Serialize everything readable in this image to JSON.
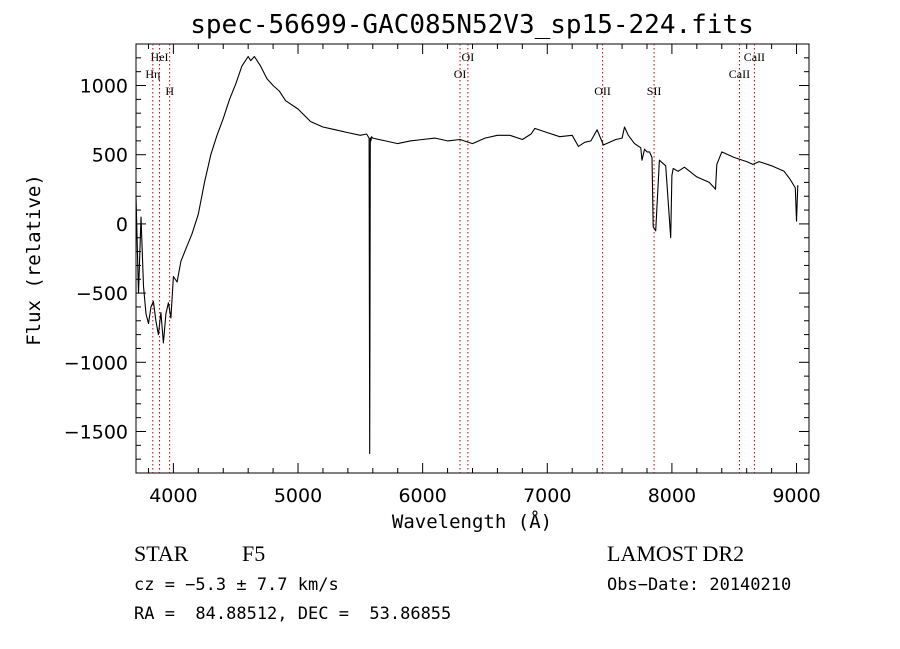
{
  "chart_data": {
    "type": "line",
    "title": "spec-56699-GAC085N52V3_sp15-224.fits",
    "xlabel": "Wavelength (Å)",
    "ylabel": "Flux (relative)",
    "xlim": [
      3700,
      9100
    ],
    "ylim": [
      -1800,
      1300
    ],
    "xticks": [
      4000,
      5000,
      6000,
      7000,
      8000,
      9000
    ],
    "xticklabels": [
      "4000",
      "5000",
      "6000",
      "7000",
      "8000",
      "9000"
    ],
    "yticks": [
      -1500,
      -1000,
      -500,
      0,
      500,
      1000
    ],
    "yticklabels": [
      "−1500",
      "−1000",
      "−500",
      "0",
      "500",
      "1000"
    ],
    "grid": false,
    "series": [
      {
        "x": [
          3700,
          3720,
          3740,
          3760,
          3780,
          3800,
          3820,
          3840,
          3860,
          3880,
          3900,
          3920,
          3940,
          3960,
          3980,
          4000,
          4030,
          4060,
          4100,
          4150,
          4200,
          4250,
          4300,
          4350,
          4400,
          4450,
          4500,
          4550,
          4600,
          4620,
          4650,
          4700,
          4750,
          4800,
          4850,
          4900,
          5000,
          5100,
          5200,
          5300,
          5400,
          5500,
          5550,
          5570,
          5575,
          5580,
          5585,
          5590,
          5600,
          5700,
          5800,
          5900,
          6000,
          6100,
          6200,
          6300,
          6400,
          6500,
          6600,
          6700,
          6800,
          6870,
          6900,
          7000,
          7100,
          7200,
          7250,
          7300,
          7350,
          7400,
          7450,
          7500,
          7550,
          7600,
          7620,
          7650,
          7700,
          7750,
          7760,
          7780,
          7800,
          7820,
          7840,
          7850,
          7870,
          7900,
          7950,
          7990,
          8000,
          8010,
          8050,
          8100,
          8200,
          8300,
          8350,
          8360,
          8400,
          8500,
          8600,
          8650,
          8700,
          8800,
          8900,
          8950,
          8990,
          9000,
          9010
        ],
        "y": [
          200,
          -500,
          50,
          -450,
          -650,
          -720,
          -600,
          -560,
          -700,
          -800,
          -640,
          -860,
          -650,
          -570,
          -680,
          -380,
          -420,
          -270,
          -180,
          -70,
          70,
          300,
          500,
          640,
          760,
          900,
          1010,
          1140,
          1210,
          1180,
          1210,
          1140,
          1050,
          1000,
          960,
          890,
          830,
          740,
          700,
          680,
          660,
          640,
          650,
          620,
          -1660,
          620,
          600,
          630,
          620,
          600,
          580,
          600,
          610,
          620,
          600,
          610,
          580,
          620,
          640,
          640,
          610,
          650,
          690,
          660,
          630,
          640,
          560,
          590,
          600,
          680,
          570,
          590,
          610,
          620,
          700,
          640,
          580,
          550,
          460,
          540,
          520,
          520,
          480,
          -20,
          -50,
          460,
          420,
          -100,
          350,
          400,
          380,
          410,
          340,
          300,
          250,
          430,
          520,
          480,
          450,
          430,
          450,
          420,
          380,
          320,
          260,
          20,
          280
        ]
      }
    ],
    "annotations": [
      {
        "label": "HeI",
        "wavelength": 3889
      },
      {
        "label": "Hη",
        "wavelength": 3835
      },
      {
        "label": "H",
        "wavelength": 3970
      },
      {
        "label": "OI",
        "wavelength": 6363
      },
      {
        "label": "OI",
        "wavelength": 6300
      },
      {
        "label": "OII",
        "wavelength": 7444
      },
      {
        "label": "SII",
        "wavelength": 7857
      },
      {
        "label": "CaII",
        "wavelength": 8662
      },
      {
        "label": "CaII",
        "wavelength": 8542
      }
    ]
  },
  "info": {
    "object_class": "STAR",
    "subclass": "F5",
    "survey": "LAMOST DR2",
    "cz": "cz = −5.3 ± 7.7 km/s",
    "obs_date": "Obs−Date: 20140210",
    "coords": "RA =  84.88512, DEC =  53.86855"
  }
}
